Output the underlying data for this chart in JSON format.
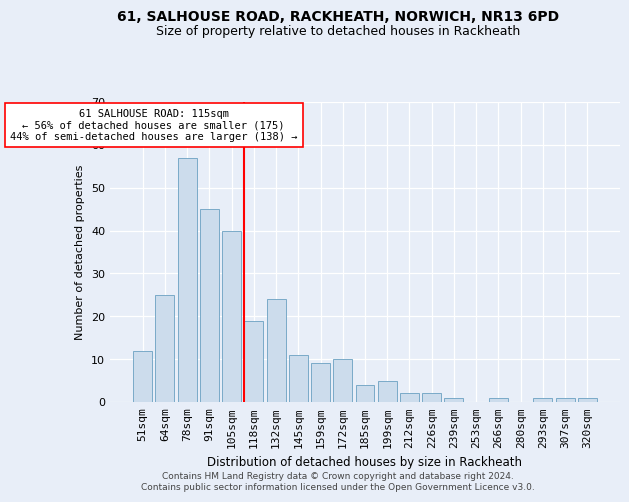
{
  "title1": "61, SALHOUSE ROAD, RACKHEATH, NORWICH, NR13 6PD",
  "title2": "Size of property relative to detached houses in Rackheath",
  "xlabel": "Distribution of detached houses by size in Rackheath",
  "ylabel": "Number of detached properties",
  "bar_labels": [
    "51sqm",
    "64sqm",
    "78sqm",
    "91sqm",
    "105sqm",
    "118sqm",
    "132sqm",
    "145sqm",
    "159sqm",
    "172sqm",
    "185sqm",
    "199sqm",
    "212sqm",
    "226sqm",
    "239sqm",
    "253sqm",
    "266sqm",
    "280sqm",
    "293sqm",
    "307sqm",
    "320sqm"
  ],
  "bar_values": [
    12,
    25,
    57,
    45,
    40,
    19,
    24,
    11,
    9,
    10,
    4,
    5,
    2,
    2,
    1,
    0,
    1,
    0,
    1,
    1,
    1
  ],
  "bar_color": "#ccdcec",
  "bar_edge_color": "#7aaac8",
  "vline_x": 4.58,
  "vline_color": "red",
  "annotation_text": "61 SALHOUSE ROAD: 115sqm\n← 56% of detached houses are smaller (175)\n44% of semi-detached houses are larger (138) →",
  "annotation_box_color": "white",
  "annotation_box_edge": "red",
  "ylim": [
    0,
    70
  ],
  "yticks": [
    0,
    10,
    20,
    30,
    40,
    50,
    60,
    70
  ],
  "footer1": "Contains HM Land Registry data © Crown copyright and database right 2024.",
  "footer2": "Contains public sector information licensed under the Open Government Licence v3.0.",
  "bg_color": "#e8eef8",
  "plot_bg_color": "#e8eef8"
}
